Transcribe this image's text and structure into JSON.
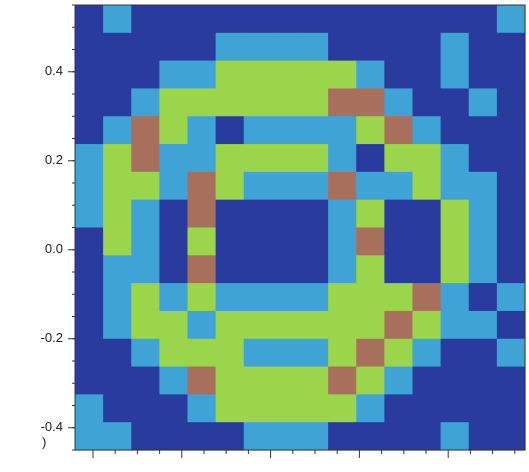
{
  "chart_data": {
    "type": "heatmap",
    "fragment": ")",
    "ylim": [
      -0.45,
      0.55
    ],
    "yticks": [
      0.4,
      0.2,
      {
        "value": 0,
        "label": "0.0"
      },
      -0.2,
      -0.4
    ],
    "colors": [
      "#2a3b9e",
      "#3fa3d6",
      "#9bd54c",
      "#a8705c"
    ],
    "z": [
      [
        0,
        1,
        0,
        0,
        0,
        0,
        0,
        0,
        0,
        0,
        0,
        0,
        0,
        0,
        0,
        1
      ],
      [
        0,
        0,
        0,
        0,
        0,
        1,
        1,
        1,
        1,
        0,
        0,
        0,
        0,
        1,
        0,
        0
      ],
      [
        0,
        0,
        0,
        1,
        1,
        2,
        2,
        2,
        2,
        2,
        1,
        0,
        0,
        1,
        0,
        0
      ],
      [
        0,
        0,
        1,
        2,
        2,
        2,
        2,
        2,
        2,
        3,
        3,
        1,
        0,
        0,
        1,
        0
      ],
      [
        0,
        1,
        3,
        2,
        1,
        0,
        1,
        1,
        1,
        1,
        2,
        3,
        1,
        0,
        0,
        0
      ],
      [
        1,
        2,
        3,
        1,
        1,
        2,
        2,
        2,
        2,
        1,
        0,
        2,
        2,
        1,
        0,
        0
      ],
      [
        1,
        2,
        2,
        1,
        3,
        2,
        1,
        1,
        1,
        3,
        1,
        1,
        2,
        1,
        1,
        0
      ],
      [
        1,
        2,
        1,
        0,
        3,
        0,
        0,
        0,
        0,
        1,
        2,
        0,
        0,
        2,
        1,
        0
      ],
      [
        0,
        2,
        1,
        0,
        2,
        0,
        0,
        0,
        0,
        1,
        3,
        0,
        0,
        2,
        1,
        0
      ],
      [
        0,
        1,
        1,
        0,
        3,
        0,
        0,
        0,
        0,
        1,
        2,
        0,
        0,
        2,
        1,
        0
      ],
      [
        0,
        1,
        2,
        1,
        2,
        1,
        1,
        1,
        1,
        2,
        2,
        2,
        3,
        1,
        0,
        1
      ],
      [
        0,
        1,
        2,
        2,
        1,
        2,
        2,
        2,
        2,
        2,
        2,
        3,
        2,
        1,
        1,
        0
      ],
      [
        0,
        0,
        1,
        2,
        2,
        2,
        1,
        1,
        1,
        2,
        3,
        2,
        1,
        0,
        0,
        1
      ],
      [
        0,
        0,
        0,
        1,
        3,
        2,
        2,
        2,
        2,
        3,
        2,
        1,
        0,
        0,
        0,
        0
      ],
      [
        1,
        0,
        0,
        0,
        1,
        2,
        2,
        2,
        2,
        2,
        1,
        0,
        0,
        0,
        0,
        0
      ],
      [
        1,
        1,
        0,
        0,
        0,
        0,
        1,
        1,
        1,
        0,
        0,
        0,
        0,
        1,
        0,
        0
      ]
    ]
  }
}
